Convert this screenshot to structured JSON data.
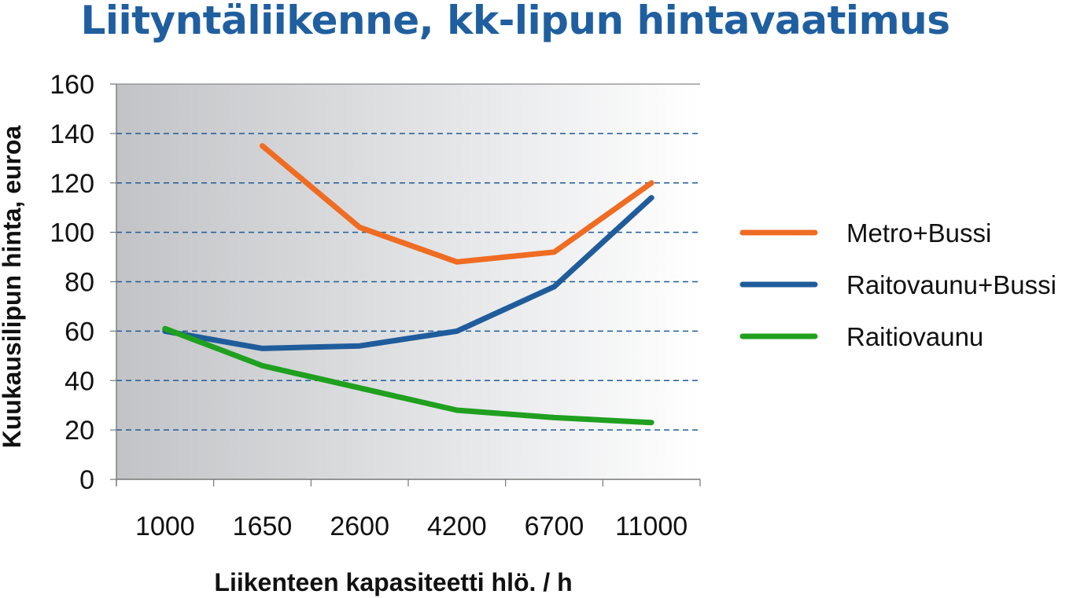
{
  "chart_data": {
    "type": "line",
    "title": "Liityntäliikenne, kk-lipun hintavaatimus",
    "xlabel": "Liikenteen kapasiteetti hlö. / h",
    "ylabel": "Kuukausilipun hinta, euroa",
    "categories": [
      "1000",
      "1650",
      "2600",
      "4200",
      "6700",
      "11000"
    ],
    "ylim": [
      0,
      160
    ],
    "yticks": [
      "0",
      "20",
      "40",
      "60",
      "80",
      "100",
      "120",
      "140",
      "160"
    ],
    "grid": "horizontal dashed",
    "legend_position": "right",
    "series": [
      {
        "name": "Metro+Bussi",
        "color": "#ef6c22",
        "values": [
          null,
          135,
          102,
          88,
          92,
          120
        ]
      },
      {
        "name": "Raitovaunu+Bussi",
        "color": "#1f5c9c",
        "values": [
          60,
          53,
          54,
          60,
          78,
          114
        ]
      },
      {
        "name": "Raitiovaunu",
        "color": "#1fa01f",
        "values": [
          61,
          46,
          37,
          28,
          25,
          23
        ]
      }
    ]
  }
}
